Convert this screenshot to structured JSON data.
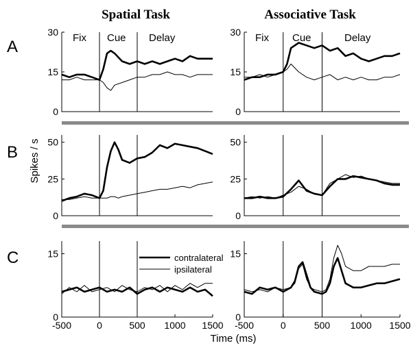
{
  "figure": {
    "column_titles": [
      "Spatial Task",
      "Associative Task"
    ],
    "row_labels": [
      "A",
      "B",
      "C"
    ],
    "ylabel": "Spikes / s",
    "xlabel": "Time (ms)",
    "epoch_labels": [
      "Fix",
      "Cue",
      "Delay"
    ],
    "legend": {
      "thick": "contralateral",
      "thin": "ipsilateral"
    },
    "colors": {
      "line": "#000000",
      "separator": "#8a8a8a"
    }
  },
  "chart_data": [
    {
      "type": "line",
      "panel": "A",
      "task": "Spatial Task",
      "ylim": [
        0,
        30
      ],
      "yticks": [
        "0",
        "15",
        "30"
      ],
      "xlim": [
        -500,
        1500
      ],
      "xticks": [],
      "vlines": [
        0,
        500
      ],
      "x": [
        -500,
        -400,
        -300,
        -200,
        -100,
        0,
        50,
        100,
        150,
        200,
        300,
        400,
        500,
        600,
        700,
        800,
        900,
        1000,
        1100,
        1200,
        1300,
        1400,
        1500
      ],
      "series": [
        {
          "name": "contralateral",
          "values": [
            14,
            13,
            14,
            14,
            13,
            12,
            16,
            22,
            23,
            22,
            19,
            18,
            19,
            18,
            19,
            18,
            19,
            20,
            19,
            21,
            20,
            20,
            20
          ]
        },
        {
          "name": "ipsilateral",
          "values": [
            12,
            12,
            13,
            12,
            12,
            12,
            11,
            9,
            8,
            10,
            11,
            12,
            13,
            13,
            14,
            14,
            15,
            14,
            14,
            13,
            14,
            14,
            14
          ]
        }
      ]
    },
    {
      "type": "line",
      "panel": "A",
      "task": "Associative Task",
      "ylim": [
        0,
        30
      ],
      "yticks": [
        "0",
        "15",
        "30"
      ],
      "xlim": [
        -500,
        1500
      ],
      "xticks": [],
      "vlines": [
        0,
        500
      ],
      "x": [
        -500,
        -400,
        -300,
        -200,
        -100,
        0,
        50,
        100,
        200,
        300,
        400,
        500,
        600,
        700,
        800,
        900,
        1000,
        1100,
        1200,
        1300,
        1400,
        1500
      ],
      "series": [
        {
          "name": "contralateral",
          "values": [
            12,
            13,
            13,
            14,
            14,
            15,
            18,
            24,
            26,
            25,
            24,
            25,
            23,
            24,
            21,
            22,
            20,
            19,
            20,
            21,
            21,
            22
          ]
        },
        {
          "name": "ipsilateral",
          "values": [
            13,
            13,
            14,
            13,
            14,
            15,
            16,
            18,
            15,
            13,
            12,
            13,
            14,
            12,
            13,
            12,
            13,
            12,
            12,
            13,
            13,
            14
          ]
        }
      ]
    },
    {
      "type": "line",
      "panel": "B",
      "task": "Spatial Task",
      "ylim": [
        0,
        55
      ],
      "yticks": [
        "0",
        "25",
        "50"
      ],
      "xlim": [
        -500,
        1500
      ],
      "xticks": [],
      "vlines": [
        0,
        500
      ],
      "x": [
        -500,
        -400,
        -300,
        -200,
        -100,
        0,
        50,
        100,
        150,
        200,
        250,
        300,
        400,
        500,
        600,
        700,
        800,
        900,
        1000,
        1100,
        1200,
        1300,
        1400,
        1500
      ],
      "series": [
        {
          "name": "contralateral",
          "values": [
            10,
            12,
            13,
            15,
            14,
            12,
            17,
            33,
            44,
            50,
            45,
            38,
            36,
            39,
            40,
            43,
            48,
            46,
            49,
            48,
            47,
            46,
            44,
            42
          ]
        },
        {
          "name": "ipsilateral",
          "values": [
            11,
            11,
            12,
            13,
            12,
            12,
            12,
            12,
            13,
            13,
            12,
            13,
            14,
            15,
            16,
            17,
            18,
            18,
            19,
            20,
            19,
            21,
            22,
            23
          ]
        }
      ]
    },
    {
      "type": "line",
      "panel": "B",
      "task": "Associative Task",
      "ylim": [
        0,
        55
      ],
      "yticks": [
        "0",
        "25",
        "50"
      ],
      "xlim": [
        -500,
        1500
      ],
      "xticks": [],
      "vlines": [
        0,
        500
      ],
      "x": [
        -500,
        -400,
        -300,
        -200,
        -100,
        0,
        100,
        200,
        300,
        400,
        500,
        600,
        700,
        800,
        900,
        1000,
        1100,
        1200,
        1300,
        1400,
        1500
      ],
      "series": [
        {
          "name": "contralateral",
          "values": [
            12,
            12,
            13,
            12,
            12,
            13,
            18,
            24,
            17,
            15,
            14,
            20,
            25,
            25,
            27,
            26,
            25,
            24,
            22,
            21,
            21
          ]
        },
        {
          "name": "ipsilateral",
          "values": [
            12,
            13,
            12,
            13,
            12,
            14,
            16,
            20,
            18,
            15,
            14,
            22,
            25,
            28,
            26,
            27,
            25,
            24,
            23,
            22,
            22
          ]
        }
      ]
    },
    {
      "type": "line",
      "panel": "C",
      "task": "Spatial Task",
      "ylim": [
        0,
        18
      ],
      "yticks": [
        "0",
        "15"
      ],
      "xlim": [
        -500,
        1500
      ],
      "xticks": [
        "-500",
        "0",
        "500",
        "1000",
        "1500"
      ],
      "vlines": [
        0,
        500
      ],
      "x": [
        -500,
        -400,
        -300,
        -200,
        -100,
        0,
        100,
        200,
        300,
        400,
        500,
        600,
        700,
        800,
        900,
        1000,
        1100,
        1200,
        1300,
        1400,
        1500
      ],
      "series": [
        {
          "name": "contralateral",
          "values": [
            6,
            6.5,
            7,
            6,
            6.5,
            7,
            6,
            6.5,
            6,
            7,
            5.5,
            6.5,
            7,
            6,
            7,
            6.5,
            6,
            7,
            6,
            6.5,
            5
          ]
        },
        {
          "name": "ipsilateral",
          "values": [
            5.5,
            7,
            6,
            7.5,
            6,
            6.5,
            7,
            6,
            7.5,
            6.5,
            6,
            7,
            6.5,
            7.5,
            6,
            7.5,
            6.5,
            8,
            7,
            8,
            8
          ]
        }
      ]
    },
    {
      "type": "line",
      "panel": "C",
      "task": "Associative Task",
      "ylim": [
        0,
        18
      ],
      "yticks": [
        "0",
        "15"
      ],
      "xlim": [
        -500,
        1500
      ],
      "xticks": [
        "-500",
        "0",
        "500",
        "1000",
        "1500"
      ],
      "vlines": [
        0,
        500
      ],
      "x": [
        -500,
        -400,
        -300,
        -200,
        -100,
        0,
        100,
        150,
        200,
        250,
        300,
        350,
        400,
        500,
        550,
        600,
        650,
        700,
        750,
        800,
        900,
        1000,
        1100,
        1200,
        1300,
        1400,
        1500
      ],
      "series": [
        {
          "name": "contralateral",
          "values": [
            6,
            5.5,
            7,
            6.5,
            7,
            6,
            7,
            8.5,
            12,
            13,
            10,
            7,
            6,
            5.5,
            6,
            8,
            12,
            14,
            11,
            8,
            7,
            7,
            7.5,
            8,
            8,
            8.5,
            9
          ]
        },
        {
          "name": "ipsilateral",
          "values": [
            6.5,
            6,
            6.5,
            6,
            7,
            6.5,
            7,
            8,
            11.5,
            12.5,
            9,
            7,
            6.5,
            6,
            6.5,
            9,
            14,
            17,
            15,
            12,
            11,
            11,
            12,
            12,
            12,
            12.5,
            12.5
          ]
        }
      ]
    }
  ]
}
